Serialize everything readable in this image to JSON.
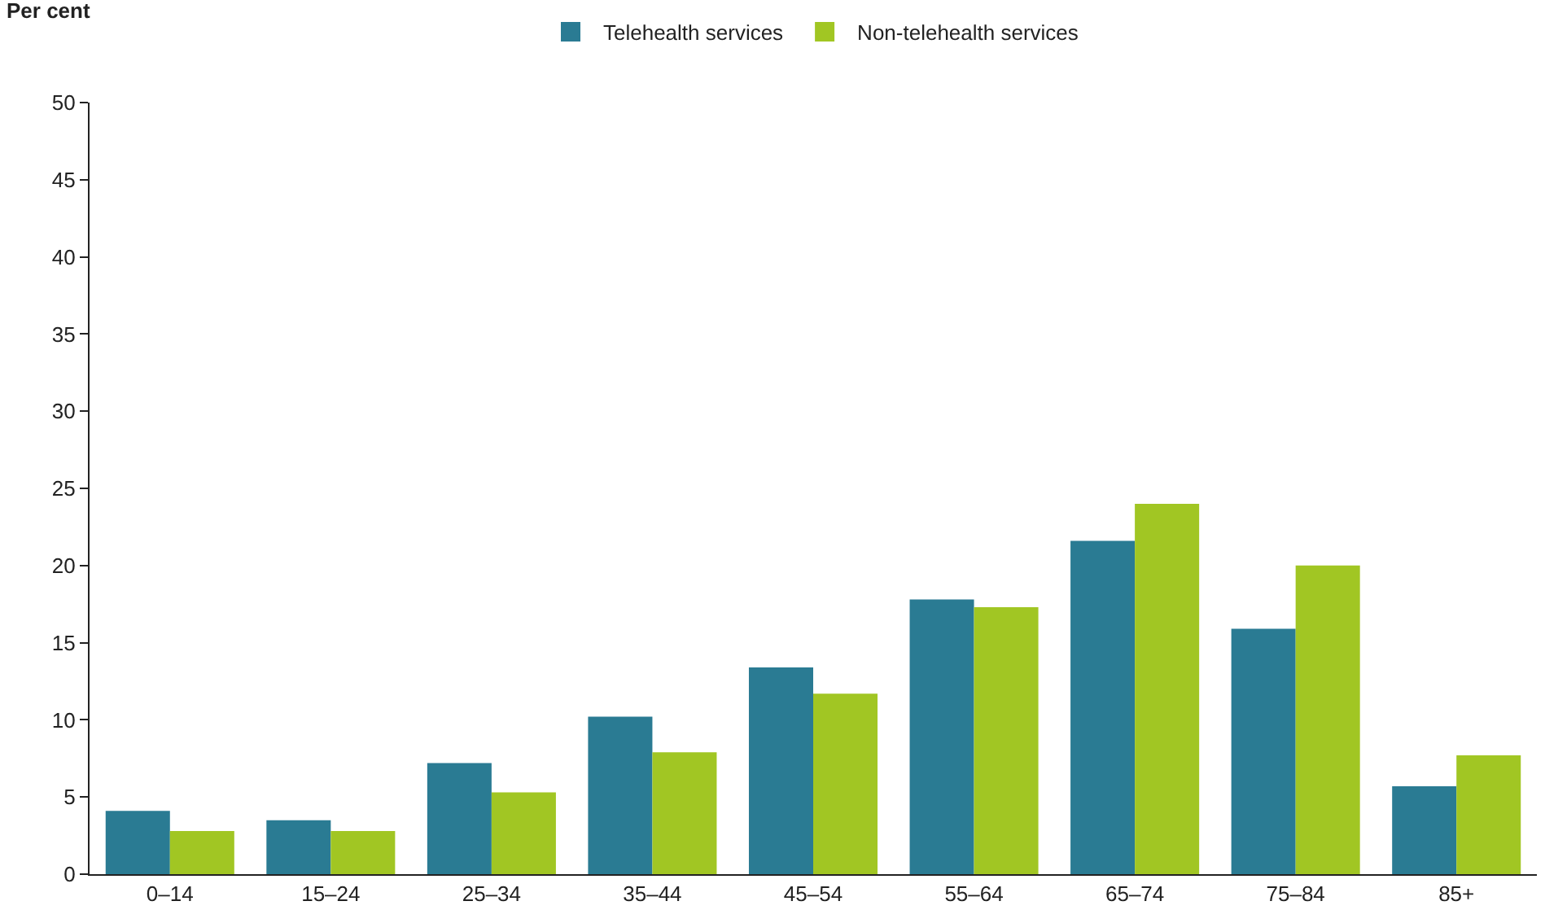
{
  "chart_data": {
    "type": "bar",
    "ylabel": "Per cent",
    "categories": [
      "0–14",
      "15–24",
      "25–34",
      "35–44",
      "45–54",
      "55–64",
      "65–74",
      "75–84",
      "85+"
    ],
    "series": [
      {
        "name": "Telehealth services",
        "color": "#2a7b93",
        "values": [
          4.1,
          3.5,
          7.2,
          10.2,
          13.4,
          17.8,
          21.6,
          15.9,
          5.7
        ]
      },
      {
        "name": "Non-telehealth services",
        "color": "#a1c623",
        "values": [
          2.8,
          2.8,
          5.3,
          7.9,
          11.7,
          17.3,
          24.0,
          20.0,
          7.7
        ]
      }
    ],
    "ylim": [
      0,
      50
    ],
    "yticks": [
      0,
      5,
      10,
      15,
      20,
      25,
      30,
      35,
      40,
      45,
      50
    ],
    "grid": false,
    "legend": "top"
  }
}
